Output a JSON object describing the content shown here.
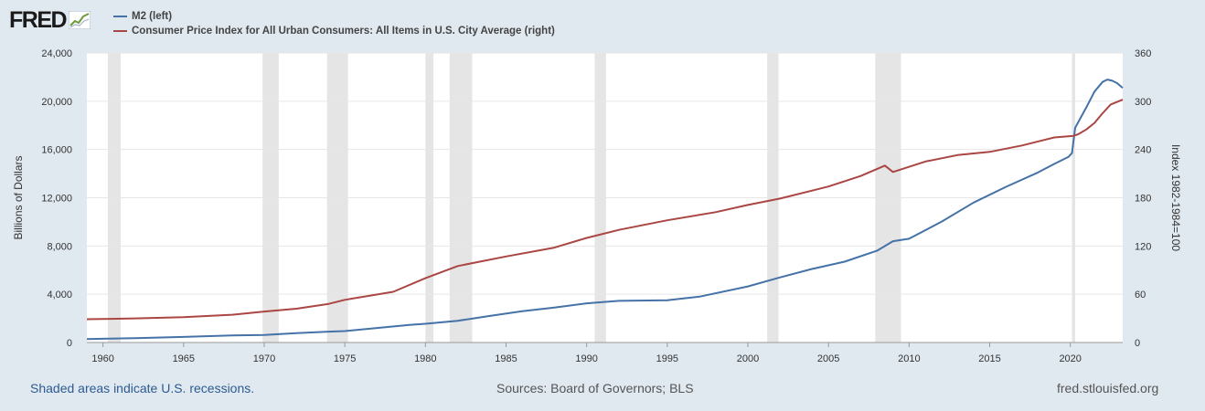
{
  "brand": {
    "logo_text": "FRED",
    "logo_icon": "chart-line-icon"
  },
  "legend": [
    {
      "label": "M2 (left)",
      "color": "#4572a7"
    },
    {
      "label": "Consumer Price Index for All Urban Consumers: All Items in U.S. City Average (right)",
      "color": "#aa4643"
    }
  ],
  "footer": {
    "recession_note": "Shaded areas indicate U.S. recessions.",
    "sources": "Sources: Board of Governors; BLS",
    "site": "fred.stlouisfed.org"
  },
  "chart_data": {
    "type": "line",
    "title": "",
    "xlabel": "",
    "ylabel": "Billions of Dollars",
    "y2label": "Index 1982-1984=100",
    "xlim": [
      1959,
      2023.25
    ],
    "ylim": [
      0,
      24000
    ],
    "y2lim": [
      0,
      360
    ],
    "x_ticks": [
      1960,
      1965,
      1970,
      1975,
      1980,
      1985,
      1990,
      1995,
      2000,
      2005,
      2010,
      2015,
      2020
    ],
    "y_ticks": [
      0,
      4000,
      8000,
      12000,
      16000,
      20000,
      24000
    ],
    "y_tick_labels": [
      "0",
      "4,000",
      "8,000",
      "12,000",
      "16,000",
      "20,000",
      "24,000"
    ],
    "y2_ticks": [
      0,
      60,
      120,
      180,
      240,
      300,
      360
    ],
    "grid": true,
    "legend_position": "top-left",
    "recessions": [
      [
        1960.3,
        1961.1
      ],
      [
        1969.9,
        1970.9
      ],
      [
        1973.9,
        1975.2
      ],
      [
        1980.0,
        1980.5
      ],
      [
        1981.5,
        1982.9
      ],
      [
        1990.5,
        1991.2
      ],
      [
        2001.2,
        2001.9
      ],
      [
        2007.9,
        2009.5
      ],
      [
        2020.1,
        2020.3
      ]
    ],
    "series": [
      {
        "name": "M2 (left)",
        "axis": "left",
        "color": "#4572a7",
        "x": [
          1959,
          1960,
          1962,
          1965,
          1968,
          1970,
          1972,
          1974,
          1975,
          1977,
          1979,
          1980,
          1982,
          1984,
          1986,
          1988,
          1990,
          1992,
          1995,
          1997,
          2000,
          2002,
          2004,
          2006,
          2008,
          2009,
          2010,
          2012,
          2014,
          2016,
          2018,
          2019,
          2019.9,
          2020.1,
          2020.3,
          2021,
          2021.5,
          2022.0,
          2022.3,
          2022.6,
          2022.9,
          2023.25
        ],
        "values": [
          290,
          310,
          360,
          460,
          580,
          630,
          780,
          900,
          950,
          1200,
          1450,
          1550,
          1800,
          2200,
          2600,
          2900,
          3250,
          3450,
          3500,
          3800,
          4650,
          5400,
          6100,
          6700,
          7600,
          8400,
          8600,
          10000,
          11600,
          12900,
          14100,
          14800,
          15400,
          15700,
          17800,
          19500,
          20800,
          21600,
          21800,
          21700,
          21500,
          21100
        ]
      },
      {
        "name": "Consumer Price Index for All Urban Consumers: All Items in U.S. City Average (right)",
        "axis": "right",
        "color": "#aa4643",
        "x": [
          1959,
          1962,
          1965,
          1968,
          1970,
          1972,
          1974,
          1975,
          1978,
          1980,
          1982,
          1985,
          1988,
          1990,
          1992,
          1995,
          1998,
          2000,
          2002,
          2005,
          2007,
          2008.5,
          2009,
          2011,
          2013,
          2015,
          2017,
          2019,
          2020.2,
          2020.5,
          2021,
          2021.5,
          2022,
          2022.5,
          2023.25
        ],
        "values": [
          29,
          30,
          31.5,
          34.5,
          38.5,
          42,
          48,
          53,
          63,
          80,
          95,
          107,
          118,
          130,
          140,
          152,
          162,
          171,
          179,
          194,
          207,
          220,
          212,
          225,
          233,
          237,
          245,
          255,
          257,
          259,
          265,
          273,
          285,
          296,
          302
        ]
      }
    ]
  }
}
